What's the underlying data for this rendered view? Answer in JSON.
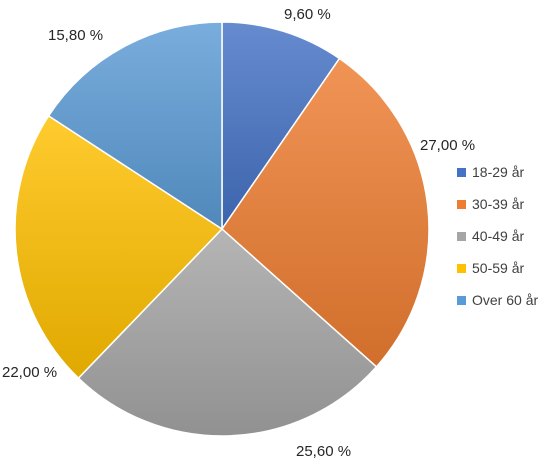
{
  "chart_data": {
    "type": "pie",
    "categories": [
      "18-29 år",
      "30-39 år",
      "40-49 år",
      "50-59 år",
      "Over 60 år"
    ],
    "values": [
      9.6,
      27.0,
      25.6,
      22.0,
      15.8
    ],
    "value_labels": [
      "9,60 %",
      "27,00 %",
      "25,60 %",
      "22,00 %",
      "15,80 %"
    ],
    "colors": [
      "#4472C4",
      "#ED7D31",
      "#A5A5A5",
      "#FFC000",
      "#5B9BD5"
    ],
    "legend_position": "right",
    "start_angle": "12 o'clock, clockwise"
  }
}
